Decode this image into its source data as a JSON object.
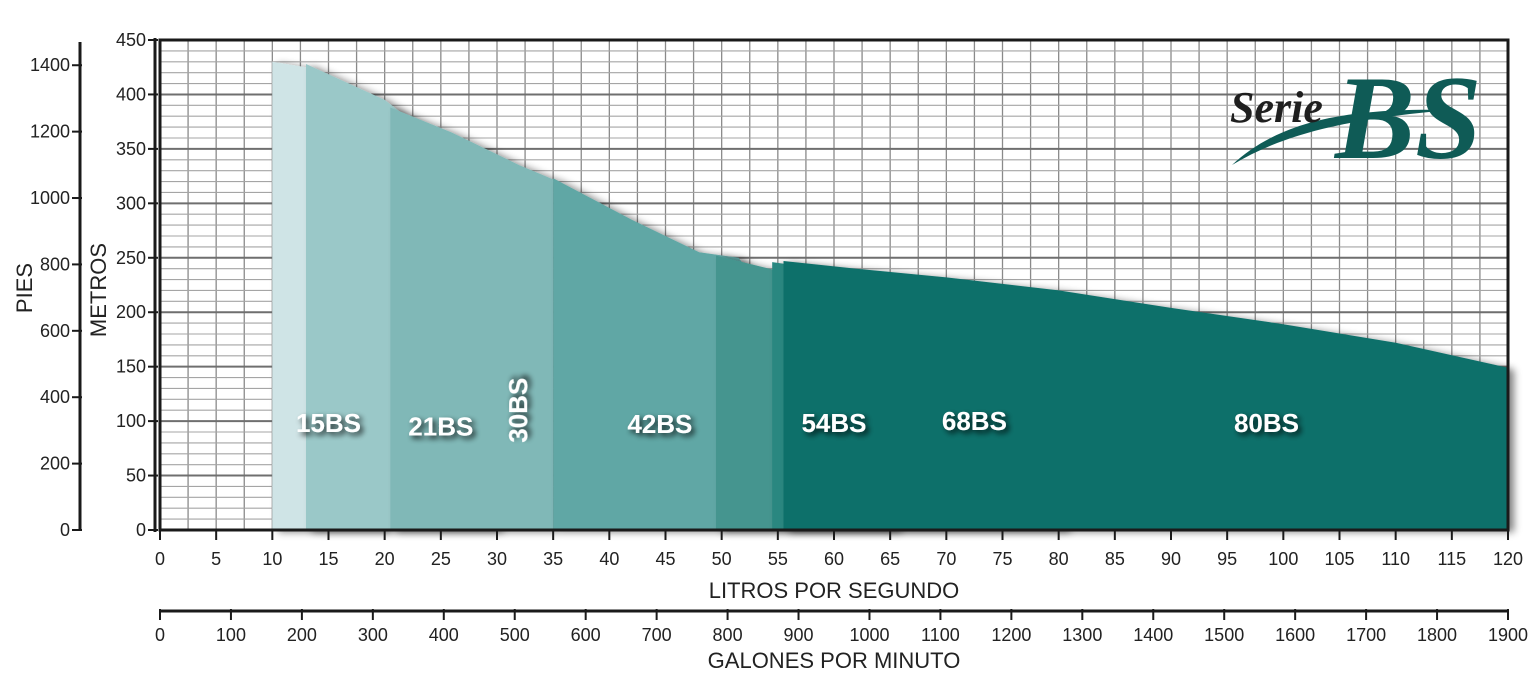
{
  "chart_data": {
    "type": "area",
    "title": "",
    "x_primary": {
      "label": "LITROS POR SEGUNDO",
      "range": [
        0,
        120
      ],
      "ticks": [
        0,
        5,
        10,
        15,
        20,
        25,
        30,
        35,
        40,
        45,
        50,
        55,
        60,
        65,
        70,
        75,
        80,
        85,
        90,
        95,
        100,
        105,
        110,
        115,
        120
      ]
    },
    "x_secondary": {
      "label": "GALONES POR MINUTO",
      "range": [
        0,
        1900
      ],
      "ticks": [
        0,
        100,
        200,
        300,
        400,
        500,
        600,
        700,
        800,
        900,
        1000,
        1100,
        1200,
        1300,
        1400,
        1500,
        1600,
        1700,
        1800,
        1900
      ]
    },
    "y_primary": {
      "label": "METROS",
      "range": [
        0,
        450
      ],
      "ticks": [
        0,
        50,
        100,
        150,
        200,
        250,
        300,
        350,
        400,
        450
      ]
    },
    "y_secondary": {
      "label": "PIES",
      "range": [
        0,
        1476
      ],
      "ticks": [
        0,
        200,
        400,
        600,
        800,
        1000,
        1200,
        1400
      ]
    },
    "grid": true,
    "series": [
      {
        "name": "15BS",
        "color": "#cfe4e6",
        "label": "15BS",
        "points": [
          [
            10,
            0
          ],
          [
            10,
            430
          ],
          [
            13,
            425
          ],
          [
            16,
            385
          ],
          [
            18.5,
            330
          ],
          [
            20,
            298
          ],
          [
            20,
            0
          ]
        ]
      },
      {
        "name": "21BS",
        "color": "#9ac8c8",
        "label": "21BS",
        "points": [
          [
            13,
            0
          ],
          [
            13,
            428
          ],
          [
            20,
            395
          ],
          [
            25,
            355
          ],
          [
            28.5,
            310
          ],
          [
            30,
            285
          ],
          [
            30,
            0
          ]
        ]
      },
      {
        "name": "30BS",
        "color": "#80b8b7",
        "label": "30BS",
        "points": [
          [
            20.5,
            0
          ],
          [
            20.5,
            388
          ],
          [
            26,
            365
          ],
          [
            32,
            335
          ],
          [
            35,
            322
          ],
          [
            35,
            0
          ]
        ]
      },
      {
        "name": "42BS",
        "color": "#61a7a5",
        "label": "42BS",
        "points": [
          [
            35,
            0
          ],
          [
            35,
            323
          ],
          [
            42,
            285
          ],
          [
            48,
            255
          ],
          [
            51.5,
            250
          ],
          [
            53.5,
            225
          ],
          [
            54.5,
            208
          ],
          [
            54.5,
            0
          ]
        ]
      },
      {
        "name": "54BS",
        "color": "#45958f",
        "label": "54BS",
        "points": [
          [
            49.5,
            0
          ],
          [
            49.5,
            252
          ],
          [
            55,
            238
          ],
          [
            60,
            220
          ],
          [
            63,
            205
          ],
          [
            65.5,
            193
          ],
          [
            65.5,
            0
          ]
        ]
      },
      {
        "name": "68BS",
        "color": "#298780",
        "label": "68BS",
        "points": [
          [
            54.5,
            0
          ],
          [
            54.5,
            246
          ],
          [
            60,
            238
          ],
          [
            67,
            225
          ],
          [
            73,
            213
          ],
          [
            78,
            204
          ],
          [
            80.5,
            198
          ],
          [
            80.5,
            0
          ]
        ]
      },
      {
        "name": "80BS",
        "color": "#0e6f6a",
        "label": "80BS",
        "points": [
          [
            55.5,
            0
          ],
          [
            55.5,
            247
          ],
          [
            62,
            240
          ],
          [
            70,
            232
          ],
          [
            80,
            220
          ],
          [
            90,
            204
          ],
          [
            100,
            189
          ],
          [
            110,
            172
          ],
          [
            120,
            149
          ],
          [
            120,
            0
          ]
        ]
      }
    ]
  },
  "logo": {
    "serie": "Serie",
    "bs": "BS"
  }
}
